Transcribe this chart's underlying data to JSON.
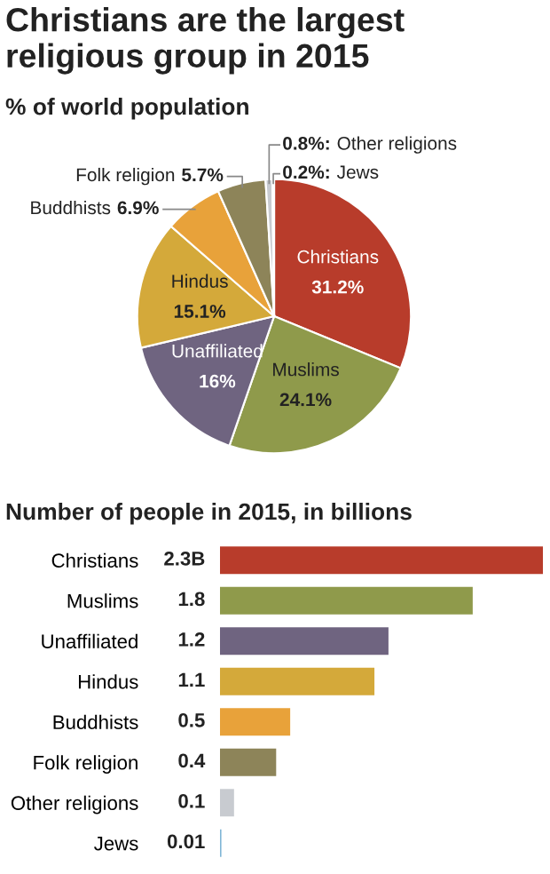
{
  "chart_data": [
    {
      "type": "pie",
      "title": "Christians are the largest religious group in 2015",
      "subtitle": "% of world population",
      "categories": [
        "Christians",
        "Muslims",
        "Unaffiliated",
        "Hindus",
        "Buddhists",
        "Folk religion",
        "Other religions",
        "Jews"
      ],
      "values": [
        31.2,
        24.1,
        16,
        15.1,
        6.9,
        5.7,
        0.8,
        0.2
      ],
      "value_labels": [
        "31.2%",
        "24.1%",
        "16%",
        "15.1%",
        "6.9%",
        "5.7%",
        "0.8%:",
        "0.2%:"
      ],
      "colors": [
        "#b83c2b",
        "#8f9a4b",
        "#6f6480",
        "#d4a93a",
        "#e8a23a",
        "#8d8459",
        "#c8cbd0",
        "#7fb6d6"
      ]
    },
    {
      "type": "bar",
      "orientation": "horizontal",
      "title": "Number of people in 2015, in billions",
      "categories": [
        "Christians",
        "Muslims",
        "Unaffiliated",
        "Hindus",
        "Buddhists",
        "Folk religion",
        "Other religions",
        "Jews"
      ],
      "values": [
        2.3,
        1.8,
        1.2,
        1.1,
        0.5,
        0.4,
        0.1,
        0.01
      ],
      "value_labels": [
        "2.3B",
        "1.8",
        "1.2",
        "1.1",
        "0.5",
        "0.4",
        "0.1",
        "0.01"
      ],
      "colors": [
        "#b83c2b",
        "#8f9a4b",
        "#6f6480",
        "#d4a93a",
        "#e8a23a",
        "#8d8459",
        "#c8cbd0",
        "#7fb6d6"
      ]
    }
  ]
}
